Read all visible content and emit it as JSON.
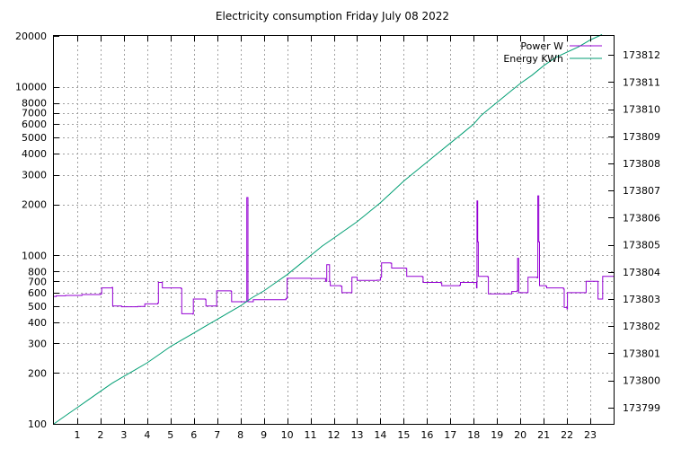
{
  "chart_data": {
    "type": "line",
    "title": "Electricity consumption Friday July 08 2022",
    "xlim": [
      0,
      24
    ],
    "x_ticks": [
      1,
      2,
      3,
      4,
      5,
      6,
      7,
      8,
      9,
      10,
      11,
      12,
      13,
      14,
      15,
      16,
      17,
      18,
      19,
      20,
      21,
      22,
      23
    ],
    "y_left": {
      "scale": "log",
      "ylim": [
        100,
        20000
      ],
      "ticks": [
        100,
        200,
        300,
        400,
        500,
        600,
        700,
        800,
        1000,
        2000,
        3000,
        4000,
        5000,
        6000,
        7000,
        8000,
        10000,
        20000
      ],
      "labels": [
        "100",
        "200",
        "300",
        "400",
        "500",
        "600",
        "700",
        "800",
        "1000",
        "2000",
        "3000",
        "4000",
        "5000",
        "6000",
        "7000",
        "8000",
        "10000",
        "20000"
      ]
    },
    "y_right": {
      "scale": "linear",
      "ylim": [
        173798.4,
        173812.7
      ],
      "ticks": [
        173799,
        173800,
        173801,
        173802,
        173803,
        173804,
        173805,
        173806,
        173807,
        173808,
        173809,
        173810,
        173811,
        173812
      ],
      "labels": [
        "173799",
        "173800",
        "173801",
        "173802",
        "173803",
        "173804",
        "173805",
        "173806",
        "173807",
        "173808",
        "173809",
        "173810",
        "173811",
        "173812"
      ]
    },
    "grid": true,
    "legend_position": "top-right",
    "series": [
      {
        "name": "Power W",
        "axis": "left",
        "color": "#9400d3",
        "step": true,
        "points": [
          [
            0,
            570
          ],
          [
            0.1,
            575
          ],
          [
            0.5,
            578
          ],
          [
            1.2,
            585
          ],
          [
            2.0,
            590
          ],
          [
            2.05,
            640
          ],
          [
            2.5,
            645
          ],
          [
            2.52,
            500
          ],
          [
            2.9,
            495
          ],
          [
            3.6,
            497
          ],
          [
            3.9,
            515
          ],
          [
            4.45,
            520
          ],
          [
            4.48,
            690
          ],
          [
            4.65,
            640
          ],
          [
            5.45,
            635
          ],
          [
            5.48,
            450
          ],
          [
            5.95,
            448
          ],
          [
            5.98,
            550
          ],
          [
            6.5,
            545
          ],
          [
            6.52,
            500
          ],
          [
            6.95,
            500
          ],
          [
            6.98,
            615
          ],
          [
            7.6,
            610
          ],
          [
            7.62,
            530
          ],
          [
            8.25,
            530
          ],
          [
            8.27,
            2200
          ],
          [
            8.32,
            530
          ],
          [
            8.55,
            545
          ],
          [
            9.95,
            555
          ],
          [
            10.0,
            730
          ],
          [
            11.0,
            728
          ],
          [
            11.65,
            700
          ],
          [
            11.7,
            880
          ],
          [
            11.82,
            700
          ],
          [
            11.85,
            660
          ],
          [
            12.3,
            655
          ],
          [
            12.35,
            600
          ],
          [
            12.75,
            600
          ],
          [
            12.78,
            740
          ],
          [
            13.0,
            710
          ],
          [
            13.85,
            712
          ],
          [
            14.0,
            740
          ],
          [
            14.05,
            900
          ],
          [
            14.45,
            895
          ],
          [
            14.48,
            840
          ],
          [
            15.1,
            835
          ],
          [
            15.13,
            750
          ],
          [
            15.8,
            745
          ],
          [
            15.83,
            690
          ],
          [
            16.6,
            685
          ],
          [
            16.63,
            660
          ],
          [
            17.4,
            665
          ],
          [
            17.43,
            690
          ],
          [
            18.1,
            690
          ],
          [
            18.12,
            640
          ],
          [
            18.14,
            2100
          ],
          [
            18.17,
            1200
          ],
          [
            18.2,
            750
          ],
          [
            18.6,
            745
          ],
          [
            18.63,
            590
          ],
          [
            19.6,
            590
          ],
          [
            19.63,
            610
          ],
          [
            19.85,
            615
          ],
          [
            19.88,
            960
          ],
          [
            19.93,
            600
          ],
          [
            20.3,
            600
          ],
          [
            20.33,
            740
          ],
          [
            20.72,
            735
          ],
          [
            20.75,
            2250
          ],
          [
            20.79,
            1200
          ],
          [
            20.82,
            660
          ],
          [
            21.1,
            655
          ],
          [
            21.13,
            640
          ],
          [
            21.85,
            630
          ],
          [
            21.88,
            490
          ],
          [
            22.0,
            480
          ],
          [
            22.02,
            600
          ],
          [
            22.8,
            600
          ],
          [
            22.82,
            700
          ],
          [
            23.3,
            700
          ],
          [
            23.33,
            550
          ],
          [
            23.5,
            550
          ],
          [
            23.53,
            750
          ],
          [
            24,
            750
          ]
        ]
      },
      {
        "name": "Energy KWh",
        "axis": "right",
        "color": "#009e73",
        "step": false,
        "points": [
          [
            0,
            173798.4
          ],
          [
            0.5,
            173798.7
          ],
          [
            1.0,
            173799.0
          ],
          [
            1.5,
            173799.3
          ],
          [
            2.0,
            173799.6
          ],
          [
            2.5,
            173799.9
          ],
          [
            3.0,
            173800.15
          ],
          [
            3.5,
            173800.4
          ],
          [
            4.0,
            173800.65
          ],
          [
            4.5,
            173800.95
          ],
          [
            5.0,
            173801.25
          ],
          [
            5.5,
            173801.5
          ],
          [
            6.0,
            173801.75
          ],
          [
            6.5,
            173802.0
          ],
          [
            7.0,
            173802.25
          ],
          [
            7.5,
            173802.5
          ],
          [
            8.0,
            173802.75
          ],
          [
            8.5,
            173803.05
          ],
          [
            9.0,
            173803.3
          ],
          [
            9.5,
            173803.6
          ],
          [
            10.0,
            173803.9
          ],
          [
            10.5,
            173804.25
          ],
          [
            11.0,
            173804.6
          ],
          [
            11.5,
            173804.95
          ],
          [
            12.0,
            173805.25
          ],
          [
            12.5,
            173805.55
          ],
          [
            13.0,
            173805.85
          ],
          [
            13.5,
            173806.2
          ],
          [
            14.0,
            173806.55
          ],
          [
            14.5,
            173806.95
          ],
          [
            15.0,
            173807.35
          ],
          [
            15.5,
            173807.7
          ],
          [
            16.0,
            173808.05
          ],
          [
            16.5,
            173808.4
          ],
          [
            17.0,
            173808.75
          ],
          [
            17.5,
            173809.1
          ],
          [
            18.0,
            173809.45
          ],
          [
            18.3,
            173809.75
          ],
          [
            18.5,
            173809.9
          ],
          [
            19.0,
            173810.25
          ],
          [
            19.5,
            173810.6
          ],
          [
            20.0,
            173810.95
          ],
          [
            20.5,
            173811.25
          ],
          [
            21.0,
            173811.6
          ],
          [
            21.5,
            173811.9
          ],
          [
            22.0,
            173812.1
          ],
          [
            22.5,
            173812.3
          ],
          [
            23.0,
            173812.55
          ],
          [
            23.5,
            173812.75
          ]
        ]
      }
    ]
  }
}
